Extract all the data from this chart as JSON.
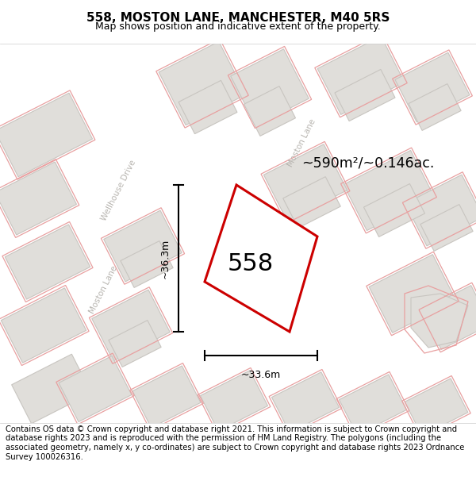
{
  "title": "558, MOSTON LANE, MANCHESTER, M40 5RS",
  "subtitle": "Map shows position and indicative extent of the property.",
  "footer": "Contains OS data © Crown copyright and database right 2021. This information is subject to Crown copyright and database rights 2023 and is reproduced with the permission of HM Land Registry. The polygons (including the associated geometry, namely x, y co-ordinates) are subject to Crown copyright and database rights 2023 Ordnance Survey 100026316.",
  "bg_color": "#f7f6f4",
  "building_fill": "#e0deda",
  "building_edge": "#c8c5c0",
  "outline_edge": "#e8a0a0",
  "highlight_fill": "#ffffff",
  "highlight_edge": "#cc0000",
  "label_text": "558",
  "area_text": "~590m²/~0.146ac.",
  "dim_width": "~33.6m",
  "dim_height": "~36.3m",
  "road_label_color": "#b8b5b0",
  "title_fontsize": 11,
  "subtitle_fontsize": 9,
  "footer_fontsize": 7.2
}
